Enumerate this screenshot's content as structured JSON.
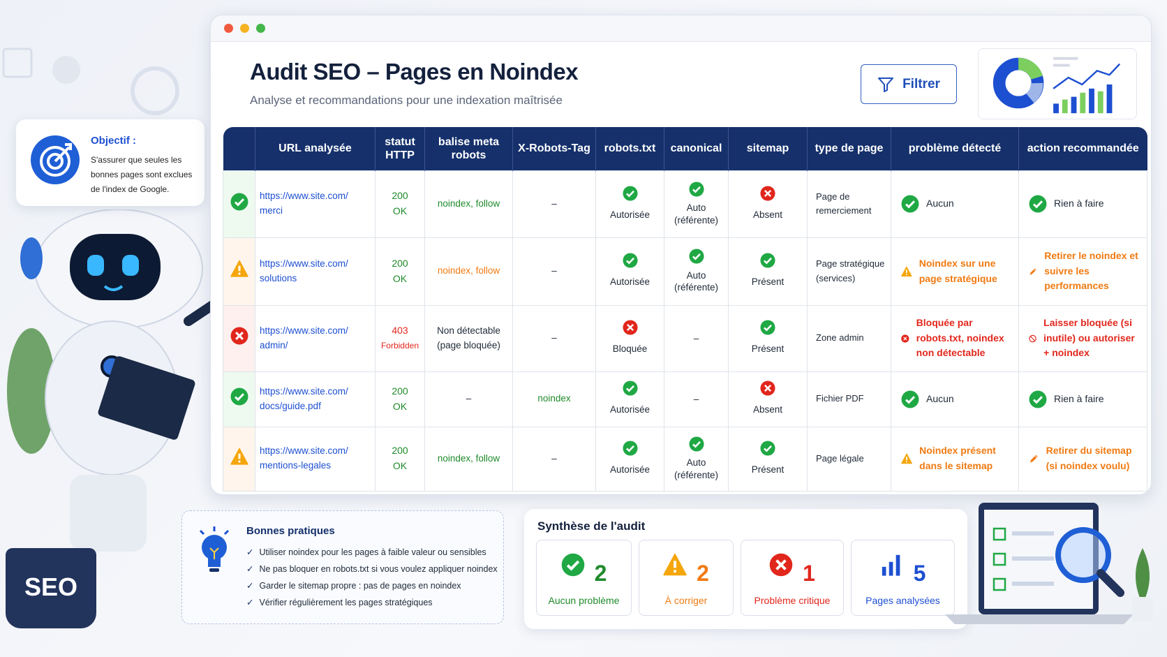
{
  "window": {
    "title": "Audit SEO – Pages en Noindex",
    "subtitle": "Analyse et recommandations pour une indexation maîtrisée",
    "filter_label": "Filtrer"
  },
  "objective": {
    "title": "Objectif :",
    "text": "S'assurer que seules les bonnes pages sont exclues de l'index de Google."
  },
  "table": {
    "headers": [
      "",
      "URL analysée",
      "statut HTTP",
      "balise meta robots",
      "X-Robots-Tag",
      "robots.txt",
      "canonical",
      "sitemap",
      "type de page",
      "problème détecté",
      "action recommandée"
    ],
    "rows": [
      {
        "status": "ok",
        "url1": "https://www.site.com/",
        "url2": "merci",
        "http1": "200",
        "http2": "OK",
        "meta": "noindex, follow",
        "xrobots": "–",
        "robots": "Autorisée",
        "robots_icon": "check",
        "canonical": "Auto (référente)",
        "canonical_icon": "check",
        "sitemap": "Absent",
        "sitemap_icon": "cross",
        "type": "Page de remerciement",
        "problem": "Aucun",
        "problem_icon": "check",
        "action": "Rien à faire",
        "action_icon": "check"
      },
      {
        "status": "warning",
        "url1": "https://www.site.com/",
        "url2": "solutions",
        "http1": "200",
        "http2": "OK",
        "meta": "noindex, follow",
        "xrobots": "–",
        "robots": "Autorisée",
        "robots_icon": "check",
        "canonical": "Auto (référente)",
        "canonical_icon": "check",
        "sitemap": "Présent",
        "sitemap_icon": "check",
        "type": "Page stratégique (services)",
        "problem": "Noindex sur une page stratégique",
        "problem_icon": "warning",
        "action": "Retirer le noindex et suivre les performances",
        "action_icon": "pencil"
      },
      {
        "status": "error",
        "url1": "https://www.site.com/",
        "url2": "admin/",
        "http1": "403",
        "http2": "Forbidden",
        "meta": "Non détectable (page bloquée)",
        "xrobots": "–",
        "robots": "Bloquée",
        "robots_icon": "cross",
        "canonical": "–",
        "canonical_icon": "",
        "sitemap": "Présent",
        "sitemap_icon": "check",
        "type": "Zone admin",
        "problem": "Bloquée par robots.txt, noindex non détectable",
        "problem_icon": "cross",
        "action": "Laisser bloquée (si inutile) ou autoriser + noindex",
        "action_icon": "ban"
      },
      {
        "status": "ok",
        "url1": "https://www.site.com/",
        "url2": "docs/guide.pdf",
        "http1": "200",
        "http2": "OK",
        "meta": "–",
        "xrobots": "noindex",
        "robots": "Autorisée",
        "robots_icon": "check",
        "canonical": "–",
        "canonical_icon": "",
        "sitemap": "Absent",
        "sitemap_icon": "cross",
        "type": "Fichier PDF",
        "problem": "Aucun",
        "problem_icon": "check",
        "action": "Rien à faire",
        "action_icon": "check"
      },
      {
        "status": "warning",
        "url1": "https://www.site.com/",
        "url2": "mentions-legales",
        "http1": "200",
        "http2": "OK",
        "meta": "noindex, follow",
        "xrobots": "–",
        "robots": "Autorisée",
        "robots_icon": "check",
        "canonical": "Auto (référente)",
        "canonical_icon": "check",
        "sitemap": "Présent",
        "sitemap_icon": "check",
        "type": "Page légale",
        "problem": "Noindex présent dans le sitemap",
        "problem_icon": "warning",
        "action": "Retirer du sitemap (si noindex voulu)",
        "action_icon": "pencil"
      }
    ]
  },
  "best_practices": {
    "title": "Bonnes pratiques",
    "items": [
      "Utiliser noindex pour les pages à faible valeur ou sensibles",
      "Ne pas bloquer en robots.txt si vous voulez appliquer noindex",
      "Garder le sitemap propre : pas de pages en noindex",
      "Vérifier régulièrement les pages stratégiques"
    ]
  },
  "summary": {
    "title": "Synthèse de l'audit",
    "cards": [
      {
        "icon": "check",
        "count": "2",
        "label": "Aucun problème",
        "color": "#1f8a2b"
      },
      {
        "icon": "warning",
        "count": "2",
        "label": "À corriger",
        "color": "#f07a12"
      },
      {
        "icon": "cross",
        "count": "1",
        "label": "Problème critique",
        "color": "#e1261c"
      },
      {
        "icon": "bar-chart",
        "count": "5",
        "label": "Pages analysées",
        "color": "#1d4fd1"
      }
    ]
  },
  "mug_label": "SEO",
  "colors": {
    "header": "#15306b",
    "ok": "#1fa844",
    "warning": "#f5a60c",
    "error": "#e1261c",
    "link": "#1d4fd1"
  }
}
